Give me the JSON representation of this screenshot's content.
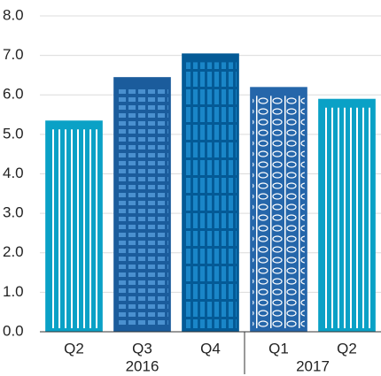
{
  "chart_data": {
    "type": "bar",
    "categories": [
      "Q2",
      "Q3",
      "Q4",
      "Q1",
      "Q2"
    ],
    "groups": [
      {
        "label": "2016",
        "size": 3
      },
      {
        "label": "2017",
        "size": 2
      }
    ],
    "values": [
      5.35,
      6.45,
      7.05,
      6.2,
      5.9
    ],
    "colors": [
      "#0aa1c6",
      "#1b5c9c",
      "#045a96",
      "#2566aa",
      "#0aa1c6"
    ],
    "ylim": [
      0,
      8
    ],
    "yticks": [
      {
        "value": 0,
        "label": "0.0"
      },
      {
        "value": 1,
        "label": "1.0"
      },
      {
        "value": 2,
        "label": "2.0"
      },
      {
        "value": 3,
        "label": "3.0"
      },
      {
        "value": 4,
        "label": "4.0"
      },
      {
        "value": 5,
        "label": "5.0"
      },
      {
        "value": 6,
        "label": "6.0"
      },
      {
        "value": 7,
        "label": "7.0"
      },
      {
        "value": 8,
        "label": "8.0"
      }
    ],
    "grid": true
  }
}
